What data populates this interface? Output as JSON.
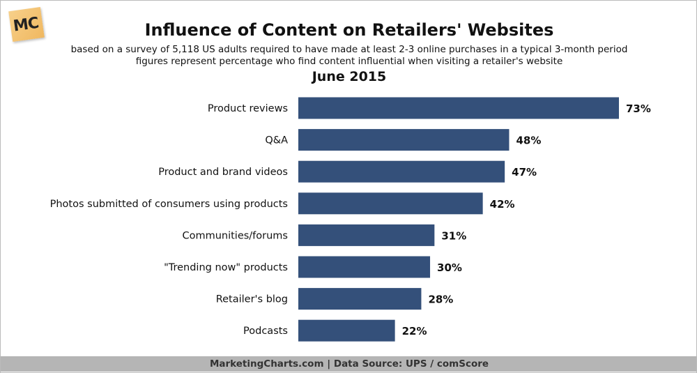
{
  "logo": {
    "text": "MC"
  },
  "header": {
    "title": "Influence of Content on Retailers' Websites",
    "subtitle1": "based on a survey of 5,118 US adults required to have made at least 2-3 online purchases in a typical 3-month period",
    "subtitle2": "figures represent percentage who find content influential when visiting a retailer's website",
    "date": "June 2015"
  },
  "footer": {
    "text": "MarketingCharts.com | Data Source: UPS / comScore"
  },
  "chart_data": {
    "type": "bar",
    "orientation": "horizontal",
    "title": "Influence of Content on Retailers' Websites",
    "categories": [
      "Product reviews",
      "Q&A",
      "Product and brand videos",
      "Photos submitted of consumers using products",
      "Communities/forums",
      "\"Trending now\" products",
      "Retailer's blog",
      "Podcasts"
    ],
    "values": [
      73,
      48,
      47,
      42,
      31,
      30,
      28,
      22
    ],
    "labels": [
      "73%",
      "48%",
      "47%",
      "42%",
      "31%",
      "30%",
      "28%",
      "22%"
    ],
    "unit": "%",
    "grid": false,
    "bar_color": "#34507a"
  }
}
